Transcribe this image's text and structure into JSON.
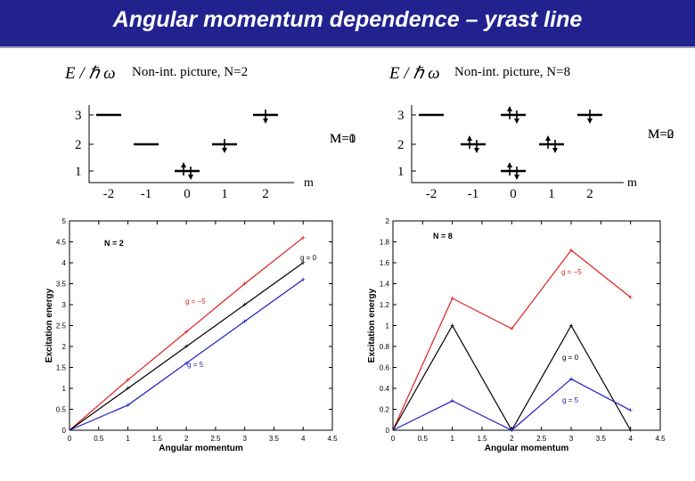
{
  "title": "Angular momentum dependence – yrast line",
  "level_diagrams": [
    {
      "ylabel": "E / ℏ ω",
      "caption": "Non-int. picture, N=2",
      "y_ticks": [
        "1",
        "2",
        "3"
      ],
      "x_ticks": [
        "-2",
        "-1",
        "0",
        "1",
        "2"
      ],
      "xlabel": "m",
      "m_label": "M=0",
      "m_label_overlay": "M=1",
      "levels": [
        {
          "m": -2,
          "energy": 3,
          "arrows": 0
        },
        {
          "m": -1,
          "energy": 2,
          "arrows": 0
        },
        {
          "m": 0,
          "energy": 1,
          "arrows": 2
        },
        {
          "m": 1,
          "energy": 2,
          "arrows": 1
        },
        {
          "m": 2,
          "energy": 3,
          "arrows": 1
        }
      ]
    },
    {
      "ylabel": "E / ℏ ω",
      "caption": "Non-int. picture, N=8",
      "y_ticks": [
        "1",
        "2",
        "3"
      ],
      "x_ticks": [
        "-2",
        "-1",
        "0",
        "1",
        "2"
      ],
      "xlabel": "m",
      "m_label": "M=0",
      "m_label_overlay": "M=2",
      "levels": [
        {
          "m": -2,
          "energy": 3,
          "arrows": 0
        },
        {
          "m": -1,
          "energy": 2,
          "arrows": 2
        },
        {
          "m": 0,
          "energy": 1,
          "arrows": 2
        },
        {
          "m": 0,
          "energy": 3,
          "arrows": 2
        },
        {
          "m": 1,
          "energy": 2,
          "arrows": 2
        },
        {
          "m": 2,
          "energy": 3,
          "arrows": 1
        }
      ]
    }
  ],
  "chart_data": [
    {
      "type": "line",
      "label": "N = 2",
      "xlabel": "Angular momentum",
      "ylabel": "Excitation energy",
      "xlim": [
        0,
        4.5
      ],
      "ylim": [
        0,
        5
      ],
      "x_ticks": [
        0,
        0.5,
        1,
        1.5,
        2,
        2.5,
        3,
        3.5,
        4,
        4.5
      ],
      "y_ticks": [
        0,
        0.5,
        1,
        1.5,
        2,
        2.5,
        3,
        3.5,
        4,
        4.5,
        5
      ],
      "x": [
        0,
        1,
        2,
        3,
        4
      ],
      "series": [
        {
          "name": "g = −5",
          "color": "#e02020",
          "values": [
            0,
            1.2,
            2.35,
            3.5,
            4.6
          ]
        },
        {
          "name": "g = 0",
          "color": "#000000",
          "values": [
            0,
            1.0,
            2.0,
            3.0,
            4.0
          ]
        },
        {
          "name": "g = 5",
          "color": "#2020c0",
          "values": [
            0,
            0.6,
            1.6,
            2.6,
            3.6
          ]
        }
      ]
    },
    {
      "type": "line",
      "label": "N = 8",
      "xlabel": "Angular momentum",
      "ylabel": "Excitation energy",
      "xlim": [
        0,
        4.5
      ],
      "ylim": [
        0,
        2
      ],
      "x_ticks": [
        0,
        0.5,
        1,
        1.5,
        2,
        2.5,
        3,
        3.5,
        4,
        4.5
      ],
      "y_ticks": [
        0,
        0.2,
        0.4,
        0.6,
        0.8,
        1,
        1.2,
        1.4,
        1.6,
        1.8,
        2
      ],
      "x": [
        0,
        1,
        2,
        3,
        4
      ],
      "series": [
        {
          "name": "g = −5",
          "color": "#e02020",
          "values": [
            0,
            1.26,
            0.97,
            1.72,
            1.27
          ]
        },
        {
          "name": "g = 0",
          "color": "#000000",
          "values": [
            0,
            1.0,
            0,
            1.0,
            0
          ]
        },
        {
          "name": "g = 5",
          "color": "#2020c0",
          "values": [
            0,
            0.28,
            0,
            0.49,
            0.19
          ]
        }
      ]
    }
  ]
}
